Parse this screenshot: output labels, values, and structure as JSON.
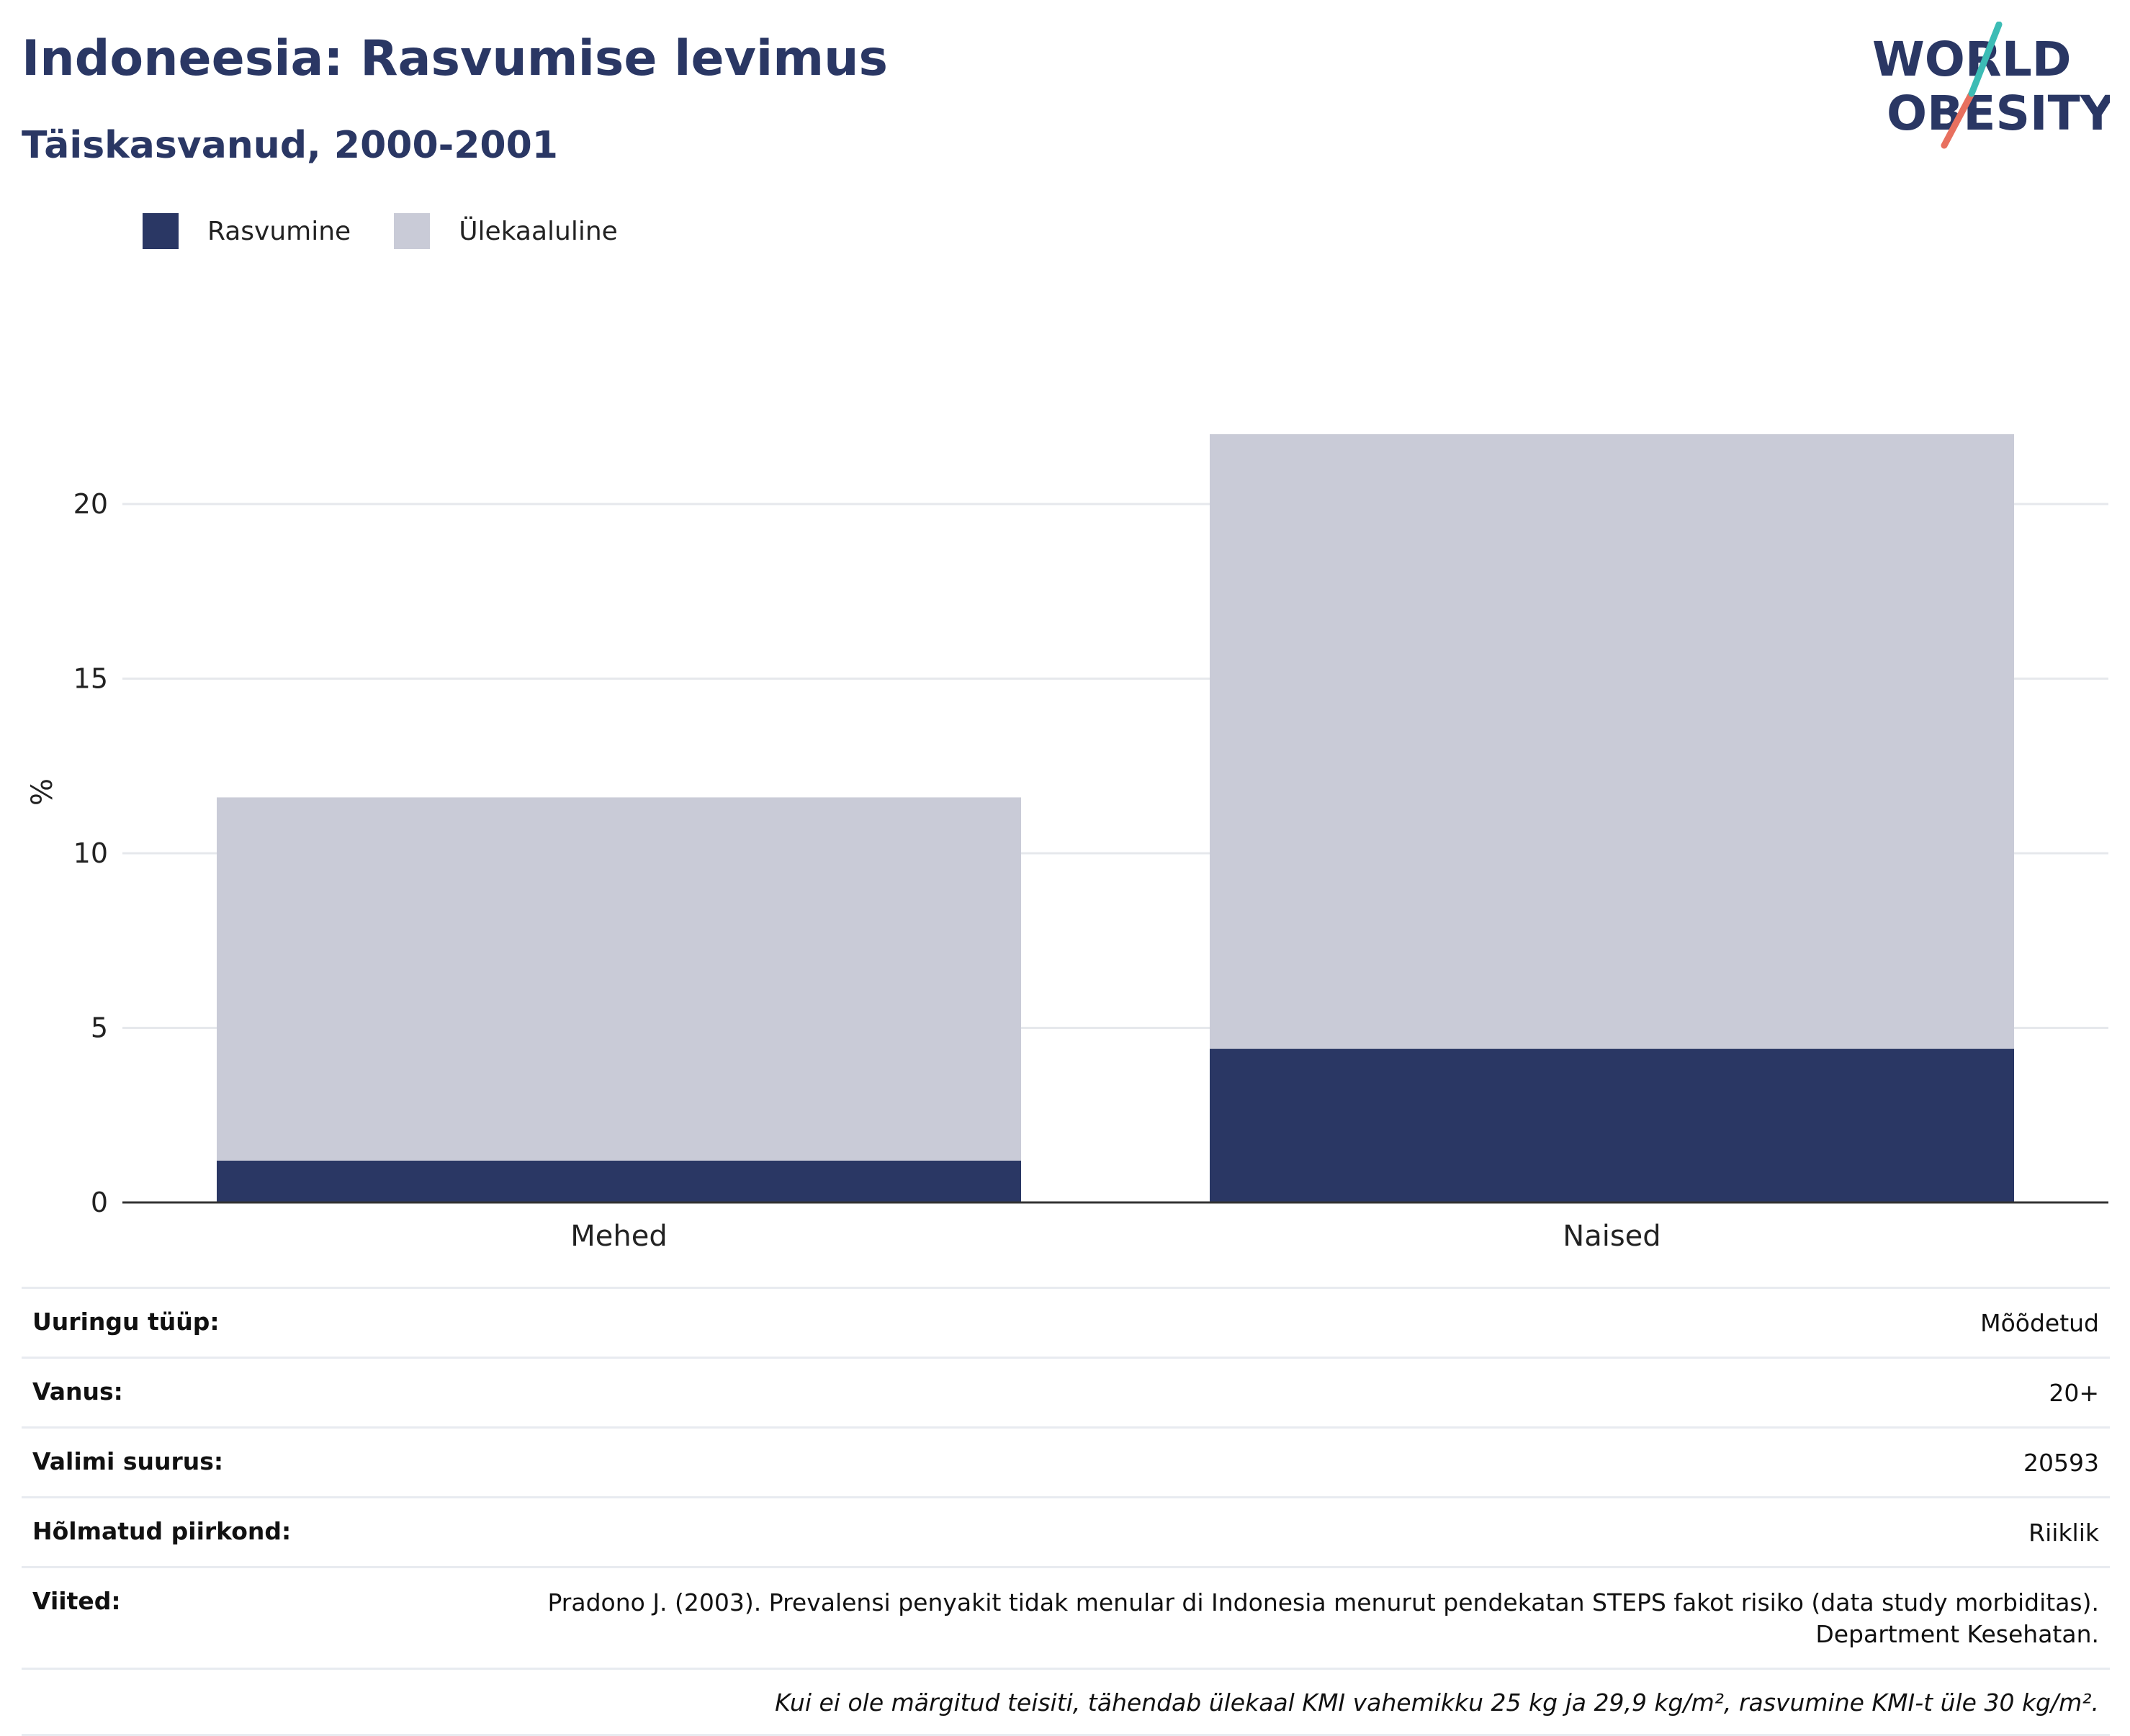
{
  "header": {
    "title": "Indoneesia: Rasvumise levimus",
    "subtitle": "Täiskasvanud, 2000-2001"
  },
  "logo": {
    "line1": "WORLD",
    "line2": "OBESITY"
  },
  "colors": {
    "obesity": "#2a3764",
    "overweight": "#c9cbd7",
    "text": "#2a3764",
    "grid": "#e6e8ec",
    "axis": "#333333"
  },
  "legend": {
    "items": [
      {
        "label": "Rasvumine",
        "color": "#2a3764"
      },
      {
        "label": "Ülekaaluline",
        "color": "#c9cbd7"
      }
    ]
  },
  "chart_data": {
    "type": "bar",
    "stacked": true,
    "categories": [
      "Mehed",
      "Naised"
    ],
    "series": [
      {
        "name": "Rasvumine",
        "values": [
          1.2,
          4.4
        ]
      },
      {
        "name": "Ülekaaluline",
        "values": [
          10.4,
          17.6
        ]
      }
    ],
    "ylabel": "%",
    "ylim": [
      0,
      23.3
    ],
    "yticks": [
      0,
      5,
      10,
      15,
      20
    ],
    "grid": true,
    "legend_position": "top-left"
  },
  "info": {
    "rows": [
      {
        "label": "Uuringu tüüp:",
        "value": "Mõõdetud"
      },
      {
        "label": "Vanus:",
        "value": "20+"
      },
      {
        "label": "Valimi suurus:",
        "value": "20593"
      },
      {
        "label": "Hõlmatud piirkond:",
        "value": "Riiklik"
      },
      {
        "label": "Viited:",
        "value": "Pradono J. (2003). Prevalensi penyakit tidak menular di Indonesia menurut pendekatan STEPS fakot risiko (data study morbiditas). Department Kesehatan."
      }
    ],
    "note": "Kui ei ole märgitud teisiti, tähendab ülekaal KMI vahemikku 25 kg ja 29,9 kg/m², rasvumine KMI-t üle 30 kg/m²."
  }
}
